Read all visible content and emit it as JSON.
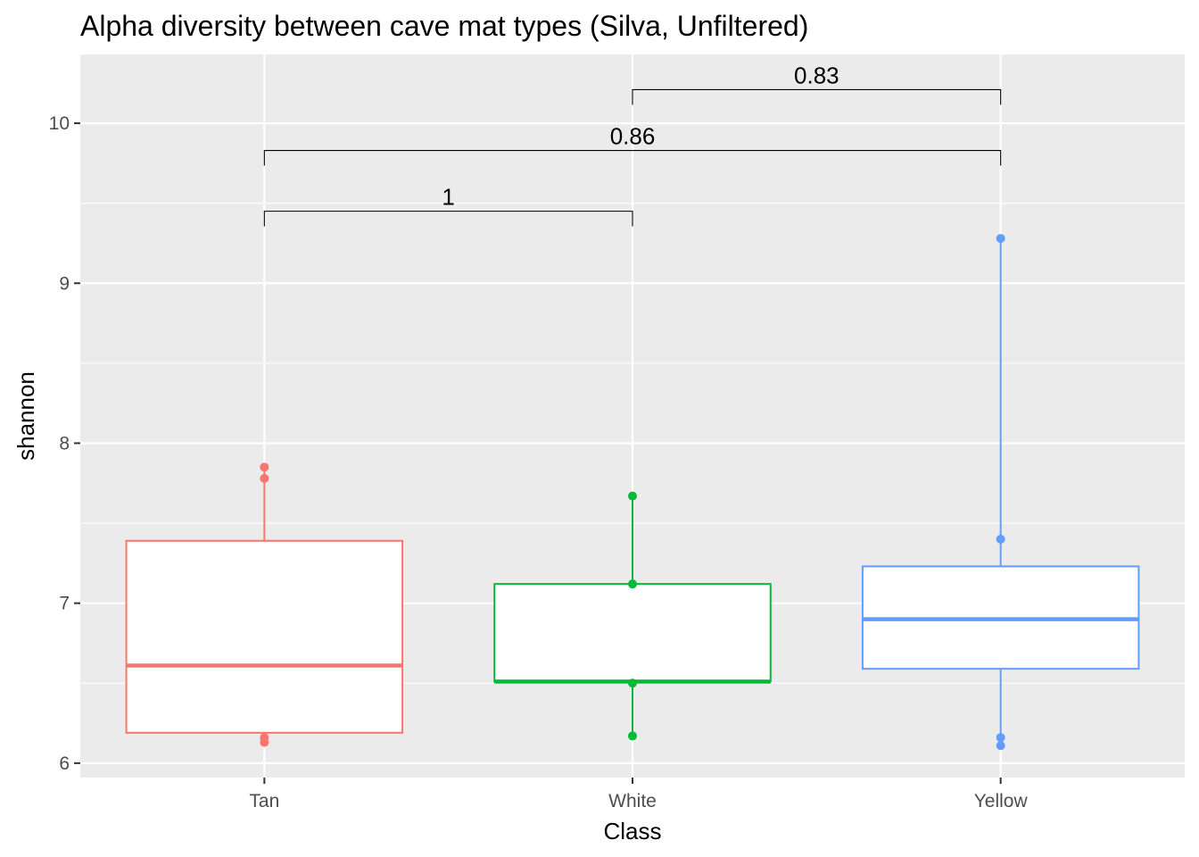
{
  "chart_data": {
    "type": "boxplot",
    "title": "Alpha diversity between cave mat types (Silva, Unfiltered)",
    "xlabel": "Class",
    "ylabel": "shannon",
    "ylim": [
      5.91,
      10.43
    ],
    "yticks": [
      6,
      7,
      8,
      9,
      10
    ],
    "y_tick_labels": [
      "6",
      "7",
      "8",
      "9",
      "10"
    ],
    "grid": true,
    "legend": "none",
    "categories": [
      "Tan",
      "White",
      "Yellow"
    ],
    "colors": {
      "Tan": "#F8766D",
      "White": "#00BA38",
      "Yellow": "#619CFF",
      "panel_background": "#EBEBEB",
      "gridline": "#FFFFFF"
    },
    "boxes": [
      {
        "category": "Tan",
        "lower_whisker": 6.13,
        "q1": 6.19,
        "median": 6.61,
        "q3": 7.39,
        "upper_whisker": 7.85
      },
      {
        "category": "White",
        "lower_whisker": 6.17,
        "q1": 6.51,
        "median": 6.51,
        "q3": 7.12,
        "upper_whisker": 7.67
      },
      {
        "category": "Yellow",
        "lower_whisker": 6.11,
        "q1": 6.59,
        "median": 6.9,
        "q3": 7.23,
        "upper_whisker": 9.28
      }
    ],
    "points": [
      {
        "category": "Tan",
        "values": [
          7.85,
          7.78,
          6.16,
          6.13
        ]
      },
      {
        "category": "White",
        "values": [
          7.67,
          7.12,
          6.5,
          6.17
        ]
      },
      {
        "category": "Yellow",
        "values": [
          9.28,
          7.4,
          6.16,
          6.11
        ]
      }
    ],
    "comparisons": [
      {
        "group1": "Tan",
        "group2": "White",
        "label": "1",
        "y": 9.45
      },
      {
        "group1": "Tan",
        "group2": "Yellow",
        "label": "0.86",
        "y": 9.83
      },
      {
        "group1": "White",
        "group2": "Yellow",
        "label": "0.83",
        "y": 10.21
      }
    ]
  }
}
